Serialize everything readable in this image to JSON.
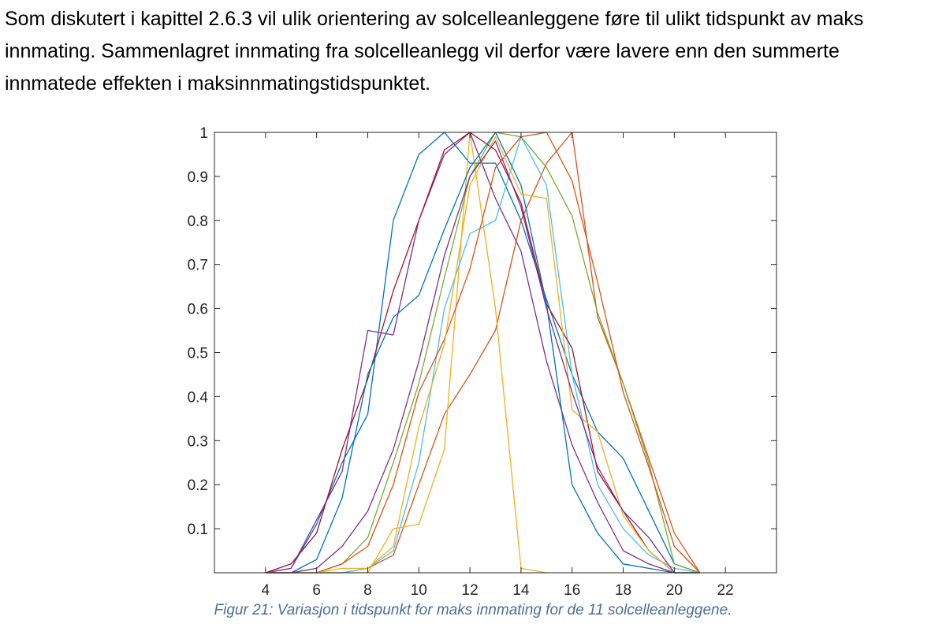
{
  "paragraph": {
    "lines": [
      "Som diskutert i kapittel 2.6.3 vil ulik orientering av solcelleanleggene føre til ulikt tidspunkt av maks",
      "innmating. Sammenlagret innmating fra solcelleanlegg vil derfor være lavere enn den summerte",
      "innmatede effekten i maksinnmatingstidspunktet."
    ]
  },
  "caption": "Figur 21: Variasjon i tidspunkt for maks innmating for de 11 solcelleanleggene.",
  "chart_data": {
    "type": "line",
    "title": "",
    "xlabel": "",
    "ylabel": "",
    "xlim": [
      2,
      24
    ],
    "ylim": [
      0,
      1
    ],
    "xticks": [
      4,
      6,
      8,
      10,
      12,
      14,
      16,
      18,
      20,
      22
    ],
    "yticks": [
      0.1,
      0.2,
      0.3,
      0.4,
      0.5,
      0.6,
      0.7,
      0.8,
      0.9,
      1
    ],
    "grid": false,
    "legend": false,
    "series": [
      {
        "color": "#0072BD",
        "x": [
          4,
          5,
          6,
          7,
          8,
          9,
          10,
          11,
          12,
          13,
          14,
          15,
          16,
          17,
          18,
          19,
          20,
          21
        ],
        "y": [
          0,
          0.01,
          0.11,
          0.25,
          0.36,
          0.8,
          0.95,
          1.0,
          0.93,
          0.93,
          0.8,
          0.62,
          0.45,
          0.32,
          0.26,
          0.14,
          0.02,
          0
        ]
      },
      {
        "color": "#D95319",
        "x": [
          4,
          5,
          6,
          7,
          8,
          9,
          10,
          11,
          12,
          13,
          14,
          15,
          16,
          17,
          18,
          19,
          20,
          21
        ],
        "y": [
          0,
          0,
          0,
          0,
          0.01,
          0.04,
          0.2,
          0.36,
          0.45,
          0.55,
          0.8,
          0.93,
          1.0,
          0.58,
          0.43,
          0.26,
          0.09,
          0
        ]
      },
      {
        "color": "#EDB120",
        "x": [
          4,
          5,
          6,
          7,
          8,
          9,
          10,
          11,
          12,
          13,
          14,
          15
        ],
        "y": [
          0,
          0,
          0,
          0,
          0,
          0.1,
          0.11,
          0.28,
          1.0,
          0.6,
          0.01,
          0
        ]
      },
      {
        "color": "#7E2F8E",
        "x": [
          4,
          5,
          6,
          7,
          8,
          9,
          10,
          11,
          12,
          13,
          14,
          15,
          16,
          17,
          18,
          19,
          20,
          21
        ],
        "y": [
          0,
          0.01,
          0.12,
          0.23,
          0.55,
          0.54,
          0.8,
          0.95,
          1.0,
          0.85,
          0.73,
          0.48,
          0.29,
          0.16,
          0.05,
          0.02,
          0,
          0
        ]
      },
      {
        "color": "#77AC30",
        "x": [
          4,
          5,
          6,
          7,
          8,
          9,
          10,
          11,
          12,
          13,
          14,
          15,
          16,
          17,
          18,
          19,
          20,
          21
        ],
        "y": [
          0,
          0,
          0,
          0.02,
          0.08,
          0.25,
          0.43,
          0.67,
          0.9,
          1.0,
          0.99,
          0.92,
          0.81,
          0.59,
          0.43,
          0.25,
          0.02,
          0
        ]
      },
      {
        "color": "#4DBEEE",
        "x": [
          4,
          5,
          6,
          7,
          8,
          9,
          10,
          11,
          12,
          13,
          14,
          15,
          16,
          17,
          18,
          19,
          20,
          21
        ],
        "y": [
          0,
          0,
          0,
          0,
          0.01,
          0.05,
          0.25,
          0.6,
          0.77,
          0.8,
          0.99,
          0.88,
          0.45,
          0.2,
          0.1,
          0.04,
          0.01,
          0
        ]
      },
      {
        "color": "#A2142F",
        "x": [
          4,
          5,
          6,
          7,
          8,
          9,
          10,
          11,
          12,
          13,
          14,
          15,
          16,
          17,
          18,
          19,
          20,
          21
        ],
        "y": [
          0,
          0.02,
          0.09,
          0.28,
          0.44,
          0.64,
          0.8,
          0.96,
          1.0,
          0.96,
          0.84,
          0.61,
          0.51,
          0.23,
          0.14,
          0.05,
          0,
          0
        ]
      },
      {
        "color": "#0072BD",
        "x": [
          4,
          5,
          6,
          7,
          8,
          9,
          10,
          11,
          12,
          13,
          14,
          15,
          16,
          17,
          18,
          19,
          20,
          21
        ],
        "y": [
          0,
          0,
          0.03,
          0.17,
          0.45,
          0.58,
          0.63,
          0.78,
          0.92,
          1.0,
          0.88,
          0.61,
          0.2,
          0.09,
          0.02,
          0.01,
          0,
          0
        ]
      },
      {
        "color": "#D95319",
        "x": [
          4,
          5,
          6,
          7,
          8,
          9,
          10,
          11,
          12,
          13,
          14,
          15,
          16,
          17,
          18,
          19,
          20,
          21
        ],
        "y": [
          0,
          0,
          0,
          0.02,
          0.06,
          0.2,
          0.41,
          0.53,
          0.69,
          0.92,
          0.99,
          1.0,
          0.89,
          0.66,
          0.41,
          0.24,
          0.06,
          0
        ]
      },
      {
        "color": "#EDB120",
        "x": [
          4,
          5,
          6,
          7,
          8,
          9,
          10,
          11,
          12,
          13,
          14,
          15,
          16,
          17,
          18,
          19,
          20,
          21
        ],
        "y": [
          0,
          0,
          0,
          0.01,
          0.01,
          0.06,
          0.33,
          0.52,
          0.88,
          0.99,
          0.86,
          0.85,
          0.37,
          0.32,
          0.13,
          0.05,
          0,
          0
        ]
      },
      {
        "color": "#7E2F8E",
        "x": [
          4,
          5,
          6,
          7,
          8,
          9,
          10,
          11,
          12,
          13,
          14,
          15,
          16,
          17,
          18,
          19,
          20,
          21
        ],
        "y": [
          0,
          0,
          0.01,
          0.06,
          0.14,
          0.28,
          0.48,
          0.72,
          0.9,
          0.98,
          0.83,
          0.6,
          0.41,
          0.24,
          0.14,
          0.08,
          0,
          0
        ]
      }
    ]
  }
}
